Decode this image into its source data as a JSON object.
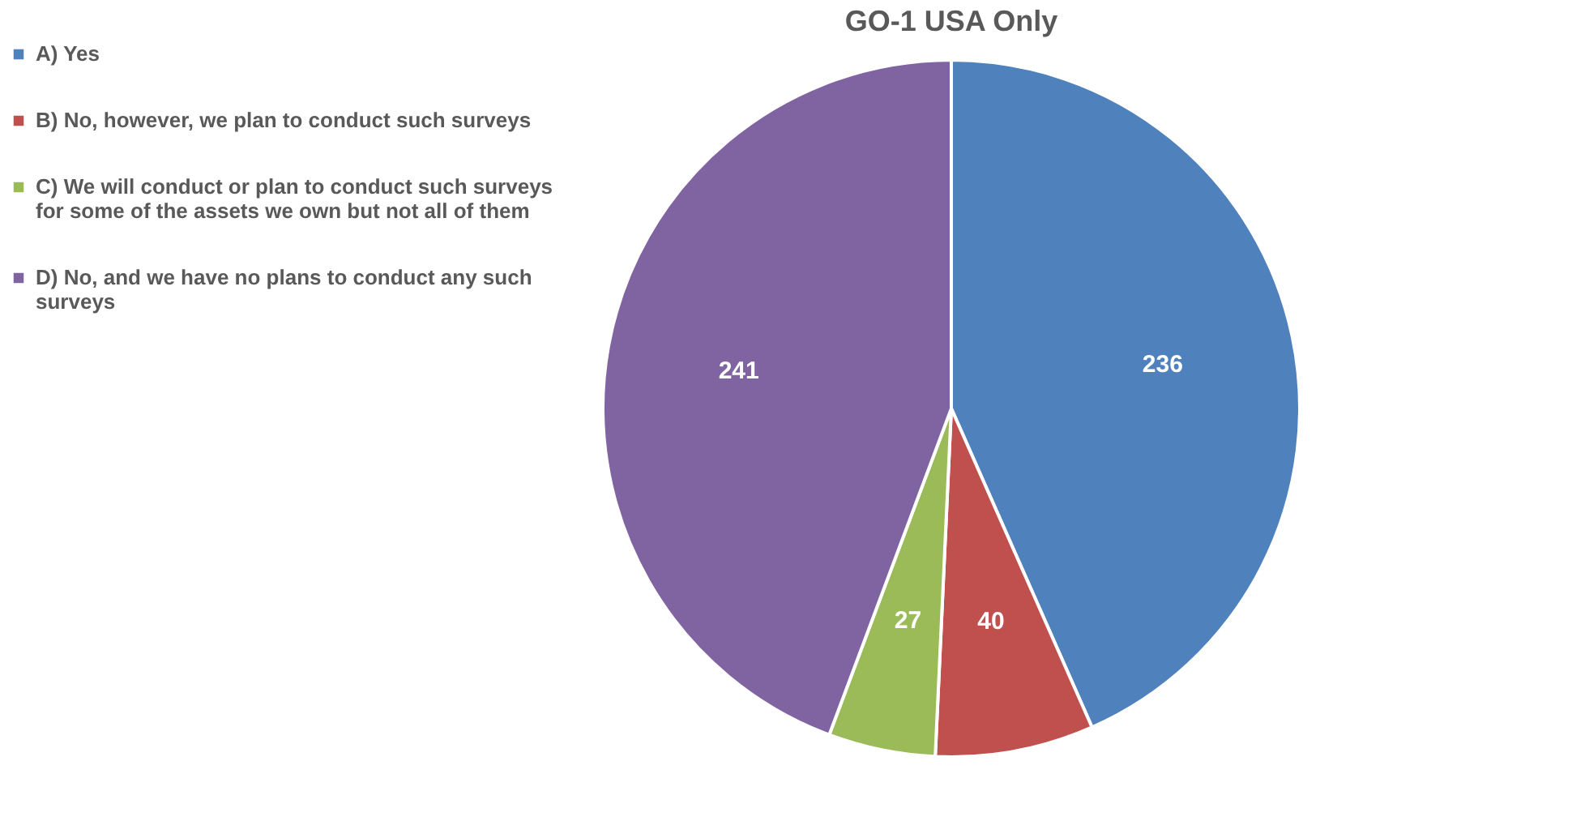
{
  "chart_data": {
    "type": "pie",
    "title": "GO-1 USA Only",
    "categories": [
      "A) Yes",
      "B) No, however, we plan to conduct such surveys",
      "C) We will conduct or plan to conduct such surveys for some of the assets we own but not all of them",
      "D) No, and we have no plans to conduct any such surveys"
    ],
    "values": [
      236,
      40,
      27,
      241
    ],
    "colors": [
      "#4f81bd",
      "#c0504d",
      "#9bbb59",
      "#8064a2"
    ],
    "data_labels": true,
    "legend": "left"
  }
}
